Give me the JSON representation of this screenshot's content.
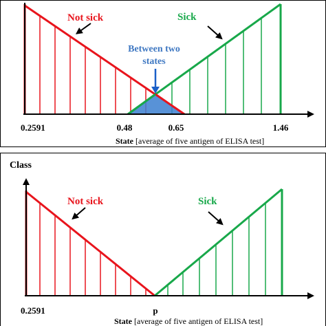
{
  "colors": {
    "not_sick": "#e8141c",
    "sick": "#18a84a",
    "overlap_fill": "#3b7fd0",
    "annotation": "#3f78c2",
    "axis": "#000000",
    "frame": "#000000"
  },
  "top_panel": {
    "label_not_sick": "Not  sick",
    "label_sick": "Sick",
    "label_between": [
      "Between two",
      "states"
    ],
    "ticks": [
      "0.2591",
      "0.48",
      "0.65",
      "1.46"
    ],
    "xlabel_bold": "State",
    "xlabel_rest": "[average of five antigen of ELISA test]"
  },
  "bottom_panel": {
    "ylabel": "Class",
    "label_not_sick": "Not  sick",
    "label_sick": "Sick",
    "ticks": [
      "0.2591",
      "p"
    ],
    "xlabel_bold": "State",
    "xlabel_rest": "[average of five antigen of ELISA test]"
  }
}
